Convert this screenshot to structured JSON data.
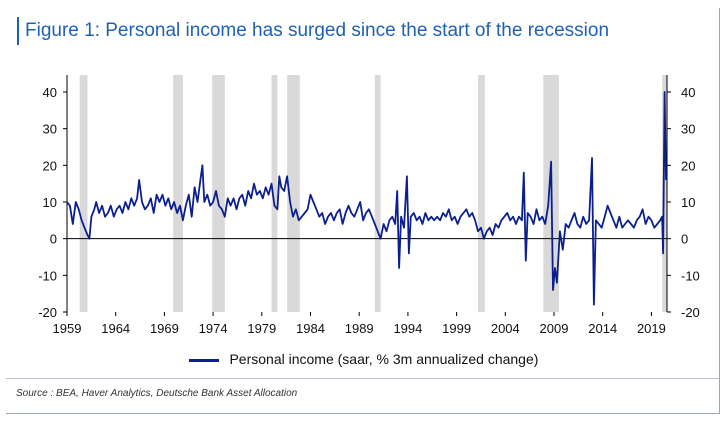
{
  "title": "Figure 1: Personal income has surged since the start of the recession",
  "source": "Source : BEA, Haver Analytics, Deutsche Bank Asset Allocation",
  "colors": {
    "accent": "#1f62b4",
    "series": "#0b1f8f",
    "recession": "#d9d9d9"
  },
  "chart_data": {
    "type": "line",
    "title": "Figure 1: Personal income has surged since the start of the recession",
    "xlim": [
      1959,
      2020.6
    ],
    "ylim": [
      -20,
      40
    ],
    "x_ticks": [
      1959,
      1964,
      1969,
      1974,
      1979,
      1984,
      1989,
      1994,
      1999,
      2004,
      2009,
      2014,
      2019
    ],
    "y_ticks": [
      -20,
      -10,
      0,
      10,
      20,
      30,
      40
    ],
    "grid": false,
    "legend": "bottom",
    "recessions": [
      [
        1960.3,
        1961.1
      ],
      [
        1969.9,
        1970.9
      ],
      [
        1973.9,
        1975.2
      ],
      [
        1980.0,
        1980.6
      ],
      [
        1981.6,
        1982.9
      ],
      [
        1990.6,
        1991.2
      ],
      [
        2001.2,
        2001.9
      ],
      [
        2007.9,
        2009.5
      ],
      [
        2020.1,
        2020.6
      ]
    ],
    "series": [
      {
        "name": "Personal income (saar, % 3m annualized change)",
        "points": [
          [
            1959.0,
            10
          ],
          [
            1959.3,
            9
          ],
          [
            1959.6,
            4
          ],
          [
            1959.9,
            10
          ],
          [
            1960.2,
            8
          ],
          [
            1960.5,
            5
          ],
          [
            1960.8,
            3
          ],
          [
            1961.1,
            1
          ],
          [
            1961.3,
            0
          ],
          [
            1961.5,
            6
          ],
          [
            1961.8,
            8
          ],
          [
            1962.0,
            10
          ],
          [
            1962.3,
            7
          ],
          [
            1962.6,
            9
          ],
          [
            1962.9,
            6
          ],
          [
            1963.2,
            7
          ],
          [
            1963.5,
            9
          ],
          [
            1963.8,
            6
          ],
          [
            1964.1,
            8
          ],
          [
            1964.4,
            9
          ],
          [
            1964.7,
            7
          ],
          [
            1965.0,
            10
          ],
          [
            1965.3,
            8
          ],
          [
            1965.6,
            11
          ],
          [
            1965.9,
            9
          ],
          [
            1966.2,
            11
          ],
          [
            1966.4,
            16
          ],
          [
            1966.7,
            10
          ],
          [
            1967.0,
            8
          ],
          [
            1967.3,
            9
          ],
          [
            1967.6,
            11
          ],
          [
            1967.9,
            7
          ],
          [
            1968.2,
            12
          ],
          [
            1968.5,
            10
          ],
          [
            1968.8,
            12
          ],
          [
            1969.1,
            9
          ],
          [
            1969.4,
            11
          ],
          [
            1969.7,
            8
          ],
          [
            1970.0,
            10
          ],
          [
            1970.3,
            7
          ],
          [
            1970.6,
            9
          ],
          [
            1970.9,
            5
          ],
          [
            1971.2,
            9
          ],
          [
            1971.5,
            12
          ],
          [
            1971.8,
            6
          ],
          [
            1972.1,
            14
          ],
          [
            1972.4,
            10
          ],
          [
            1972.7,
            16
          ],
          [
            1972.9,
            20
          ],
          [
            1973.1,
            10
          ],
          [
            1973.4,
            12
          ],
          [
            1973.7,
            9
          ],
          [
            1974.0,
            10
          ],
          [
            1974.3,
            13
          ],
          [
            1974.6,
            9
          ],
          [
            1974.9,
            8
          ],
          [
            1975.2,
            6
          ],
          [
            1975.5,
            11
          ],
          [
            1975.8,
            9
          ],
          [
            1976.1,
            11
          ],
          [
            1976.4,
            8
          ],
          [
            1976.7,
            11
          ],
          [
            1977.0,
            12
          ],
          [
            1977.3,
            9
          ],
          [
            1977.6,
            13
          ],
          [
            1977.9,
            11
          ],
          [
            1978.2,
            15
          ],
          [
            1978.5,
            12
          ],
          [
            1978.8,
            13
          ],
          [
            1979.1,
            11
          ],
          [
            1979.4,
            14
          ],
          [
            1979.7,
            12
          ],
          [
            1980.0,
            15
          ],
          [
            1980.3,
            9
          ],
          [
            1980.6,
            8
          ],
          [
            1980.8,
            17
          ],
          [
            1981.0,
            14
          ],
          [
            1981.3,
            13
          ],
          [
            1981.6,
            17
          ],
          [
            1981.9,
            10
          ],
          [
            1982.2,
            6
          ],
          [
            1982.5,
            8
          ],
          [
            1982.8,
            5
          ],
          [
            1983.1,
            6
          ],
          [
            1983.4,
            7
          ],
          [
            1983.7,
            8
          ],
          [
            1984.0,
            12
          ],
          [
            1984.3,
            10
          ],
          [
            1984.6,
            8
          ],
          [
            1984.9,
            6
          ],
          [
            1985.2,
            7
          ],
          [
            1985.5,
            4
          ],
          [
            1985.8,
            6
          ],
          [
            1986.1,
            7
          ],
          [
            1986.4,
            5
          ],
          [
            1986.7,
            7
          ],
          [
            1987.0,
            8
          ],
          [
            1987.3,
            4
          ],
          [
            1987.6,
            7
          ],
          [
            1987.9,
            9
          ],
          [
            1988.2,
            7
          ],
          [
            1988.5,
            6
          ],
          [
            1988.8,
            8
          ],
          [
            1989.1,
            10
          ],
          [
            1989.4,
            5
          ],
          [
            1989.7,
            7
          ],
          [
            1990.0,
            8
          ],
          [
            1990.3,
            6
          ],
          [
            1990.6,
            4
          ],
          [
            1990.9,
            2
          ],
          [
            1991.2,
            0
          ],
          [
            1991.5,
            4
          ],
          [
            1991.8,
            2
          ],
          [
            1992.1,
            5
          ],
          [
            1992.4,
            6
          ],
          [
            1992.7,
            4
          ],
          [
            1992.9,
            13
          ],
          [
            1993.1,
            -8
          ],
          [
            1993.3,
            6
          ],
          [
            1993.6,
            3
          ],
          [
            1993.9,
            17
          ],
          [
            1994.1,
            -4
          ],
          [
            1994.3,
            6
          ],
          [
            1994.6,
            7
          ],
          [
            1994.9,
            5
          ],
          [
            1995.2,
            6
          ],
          [
            1995.5,
            4
          ],
          [
            1995.8,
            7
          ],
          [
            1996.1,
            5
          ],
          [
            1996.4,
            6
          ],
          [
            1996.7,
            5
          ],
          [
            1997.0,
            6
          ],
          [
            1997.3,
            5
          ],
          [
            1997.6,
            7
          ],
          [
            1997.9,
            6
          ],
          [
            1998.2,
            8
          ],
          [
            1998.5,
            5
          ],
          [
            1998.8,
            6
          ],
          [
            1999.1,
            4
          ],
          [
            1999.4,
            6
          ],
          [
            1999.7,
            7
          ],
          [
            2000.0,
            8
          ],
          [
            2000.3,
            6
          ],
          [
            2000.6,
            7
          ],
          [
            2000.9,
            5
          ],
          [
            2001.2,
            2
          ],
          [
            2001.5,
            3
          ],
          [
            2001.8,
            0
          ],
          [
            2002.1,
            2
          ],
          [
            2002.4,
            3
          ],
          [
            2002.7,
            1
          ],
          [
            2003.0,
            4
          ],
          [
            2003.3,
            3
          ],
          [
            2003.6,
            5
          ],
          [
            2003.9,
            6
          ],
          [
            2004.2,
            7
          ],
          [
            2004.5,
            5
          ],
          [
            2004.8,
            6
          ],
          [
            2005.1,
            4
          ],
          [
            2005.4,
            6
          ],
          [
            2005.7,
            5
          ],
          [
            2005.9,
            18
          ],
          [
            2006.1,
            -6
          ],
          [
            2006.3,
            7
          ],
          [
            2006.6,
            6
          ],
          [
            2006.9,
            4
          ],
          [
            2007.2,
            8
          ],
          [
            2007.5,
            5
          ],
          [
            2007.8,
            6
          ],
          [
            2008.1,
            4
          ],
          [
            2008.4,
            9
          ],
          [
            2008.7,
            21
          ],
          [
            2008.9,
            -14
          ],
          [
            2009.1,
            -8
          ],
          [
            2009.3,
            -12
          ],
          [
            2009.6,
            2
          ],
          [
            2009.9,
            -3
          ],
          [
            2010.2,
            4
          ],
          [
            2010.5,
            3
          ],
          [
            2010.8,
            5
          ],
          [
            2011.1,
            7
          ],
          [
            2011.4,
            4
          ],
          [
            2011.7,
            3
          ],
          [
            2012.0,
            6
          ],
          [
            2012.3,
            4
          ],
          [
            2012.6,
            5
          ],
          [
            2012.9,
            22
          ],
          [
            2013.1,
            -18
          ],
          [
            2013.3,
            5
          ],
          [
            2013.6,
            4
          ],
          [
            2013.9,
            3
          ],
          [
            2014.2,
            6
          ],
          [
            2014.5,
            9
          ],
          [
            2014.8,
            7
          ],
          [
            2015.1,
            5
          ],
          [
            2015.4,
            3
          ],
          [
            2015.7,
            6
          ],
          [
            2016.0,
            3
          ],
          [
            2016.3,
            4
          ],
          [
            2016.6,
            5
          ],
          [
            2016.9,
            4
          ],
          [
            2017.2,
            3
          ],
          [
            2017.5,
            5
          ],
          [
            2017.8,
            6
          ],
          [
            2018.1,
            8
          ],
          [
            2018.4,
            4
          ],
          [
            2018.7,
            6
          ],
          [
            2019.0,
            5
          ],
          [
            2019.3,
            3
          ],
          [
            2019.6,
            4
          ],
          [
            2019.9,
            5
          ],
          [
            2020.1,
            6
          ],
          [
            2020.2,
            -4
          ],
          [
            2020.35,
            40
          ],
          [
            2020.5,
            16
          ]
        ]
      }
    ]
  }
}
